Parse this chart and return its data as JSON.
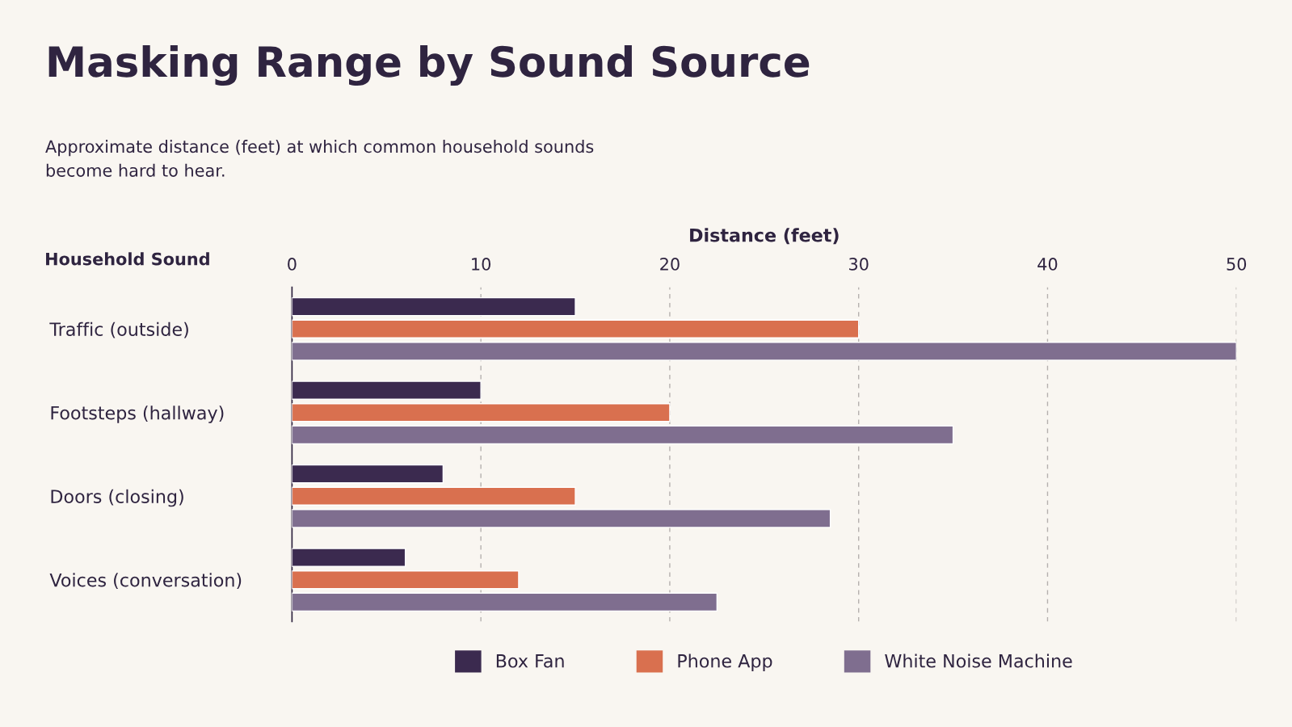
{
  "chart_data": {
    "type": "bar",
    "orientation": "horizontal",
    "title": "Masking Range by Sound Source",
    "subtitle": "Approximate distance (feet) at which common household sounds\nbecome hard to hear.",
    "xlabel": "Distance (feet)",
    "ylabel": "Household Sound",
    "categories": [
      "Traffic (outside)",
      "Footsteps (hallway)",
      "Doors (closing)",
      "Voices (conversation)"
    ],
    "series": [
      {
        "name": "Box Fan",
        "color": "#3b2a4f",
        "values": [
          15,
          10,
          8,
          6
        ]
      },
      {
        "name": "Phone App",
        "color": "#d9704f",
        "values": [
          30,
          20,
          15,
          12
        ]
      },
      {
        "name": "White Noise Machine",
        "color": "#7f6e8f",
        "values": [
          50,
          35,
          28.5,
          22.5
        ]
      }
    ],
    "xlim": [
      0,
      50
    ],
    "xticks": [
      0,
      10,
      20,
      30,
      40,
      50
    ],
    "grid": "x",
    "legend": "bottom"
  }
}
